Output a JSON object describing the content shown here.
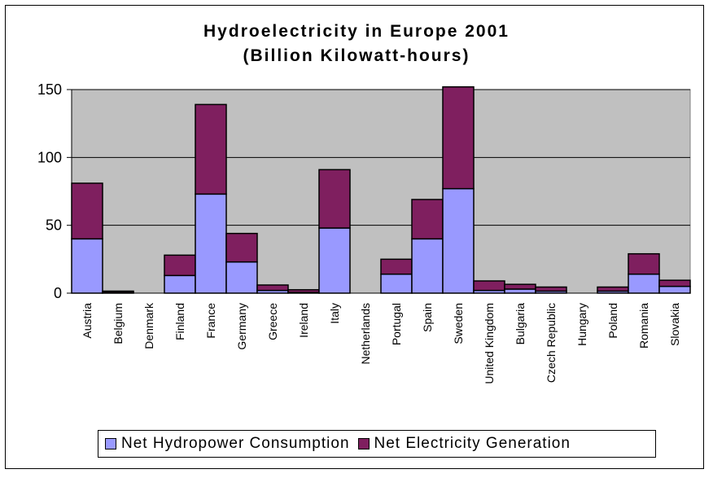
{
  "colors": {
    "plot_background": "#c0c0c0",
    "consumption": "#9999ff",
    "generation": "#7f1f5f",
    "gridline": "#000000"
  },
  "chart_data": {
    "type": "bar",
    "stacked": true,
    "title": "Hydroelectricity in Europe 2001",
    "subtitle": "(Billion Kilowatt-hours)",
    "xlabel": "",
    "ylabel": "",
    "ylim": [
      0,
      150
    ],
    "yticks": [
      0,
      50,
      100,
      150
    ],
    "grid": true,
    "legend_position": "bottom",
    "categories": [
      "Austria",
      "Belgium",
      "Denmark",
      "Finland",
      "France",
      "Germany",
      "Greece",
      "Ireland",
      "Italy",
      "Netherlands",
      "Portugal",
      "Spain",
      "Sweden",
      "United Kingdom",
      "Bulgaria",
      "Czech Republic",
      "Hungary",
      "Poland",
      "Romania",
      "Slovakia"
    ],
    "series": [
      {
        "name": "Net Hydropower Consumption",
        "values": [
          40,
          0.5,
          0,
          13,
          73,
          23,
          2,
          0.5,
          48,
          0,
          14,
          40,
          77,
          2,
          3,
          1.5,
          0,
          1.5,
          14,
          5
        ]
      },
      {
        "name": "Net Electricity Generation",
        "values": [
          41,
          1,
          0,
          15,
          66,
          21,
          4,
          2,
          43,
          0,
          11,
          29,
          75,
          7,
          3.5,
          3,
          0,
          3,
          15,
          4.5
        ]
      }
    ]
  }
}
